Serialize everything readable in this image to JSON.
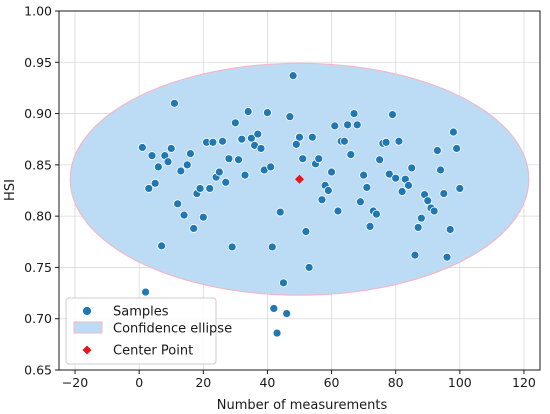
{
  "chart_data": {
    "type": "scatter",
    "xlabel": "Number of measurements",
    "ylabel": "HSI",
    "xlim": [
      -25,
      125
    ],
    "ylim": [
      0.65,
      1.0
    ],
    "x_ticks": [
      -20,
      0,
      20,
      40,
      60,
      80,
      100,
      120
    ],
    "y_ticks": [
      0.65,
      0.7,
      0.75,
      0.8,
      0.85,
      0.9,
      0.95,
      1.0
    ],
    "x_tick_labels": [
      "−20",
      "0",
      "20",
      "40",
      "60",
      "80",
      "100",
      "120"
    ],
    "y_tick_labels": [
      "0.65",
      "0.70",
      "0.75",
      "0.80",
      "0.85",
      "0.90",
      "0.95",
      "1.00"
    ],
    "grid": true,
    "legend_position": "lower-left",
    "legend": [
      "Samples",
      "Confidence ellipse",
      "Center Point"
    ],
    "colors": {
      "samples": "#1f77b4",
      "ellipse_fill": "#bcdcf5",
      "ellipse_edge": "#f2b8c6",
      "center": "#e8151b"
    },
    "ellipse": {
      "center_x": 50.0,
      "center_y": 0.836,
      "half_width_x": 71.5,
      "half_height_y": 0.113
    },
    "center_point": {
      "x": 50.0,
      "y": 0.836
    },
    "samples": [
      [
        1,
        0.867
      ],
      [
        2,
        0.726
      ],
      [
        3,
        0.827
      ],
      [
        4,
        0.859
      ],
      [
        5,
        0.832
      ],
      [
        6,
        0.848
      ],
      [
        7,
        0.771
      ],
      [
        8,
        0.859
      ],
      [
        9,
        0.853
      ],
      [
        10,
        0.866
      ],
      [
        11,
        0.91
      ],
      [
        12,
        0.812
      ],
      [
        13,
        0.844
      ],
      [
        14,
        0.801
      ],
      [
        15,
        0.85
      ],
      [
        16,
        0.861
      ],
      [
        17,
        0.788
      ],
      [
        18,
        0.822
      ],
      [
        19,
        0.827
      ],
      [
        20,
        0.799
      ],
      [
        21,
        0.872
      ],
      [
        22,
        0.827
      ],
      [
        23,
        0.872
      ],
      [
        24,
        0.838
      ],
      [
        25,
        0.843
      ],
      [
        26,
        0.873
      ],
      [
        27,
        0.833
      ],
      [
        28,
        0.856
      ],
      [
        29,
        0.77
      ],
      [
        30,
        0.891
      ],
      [
        31,
        0.855
      ],
      [
        32,
        0.875
      ],
      [
        33,
        0.84
      ],
      [
        34,
        0.902
      ],
      [
        35,
        0.876
      ],
      [
        36,
        0.869
      ],
      [
        37,
        0.88
      ],
      [
        38,
        0.866
      ],
      [
        39,
        0.845
      ],
      [
        40,
        0.901
      ],
      [
        41,
        0.848
      ],
      [
        41.5,
        0.77
      ],
      [
        42,
        0.71
      ],
      [
        43,
        0.686
      ],
      [
        44,
        0.804
      ],
      [
        45,
        0.735
      ],
      [
        46,
        0.705
      ],
      [
        47,
        0.897
      ],
      [
        48,
        0.937
      ],
      [
        49,
        0.87
      ],
      [
        50,
        0.877
      ],
      [
        51,
        0.856
      ],
      [
        52,
        0.785
      ],
      [
        53,
        0.75
      ],
      [
        54,
        0.877
      ],
      [
        55,
        0.851
      ],
      [
        56,
        0.856
      ],
      [
        57,
        0.816
      ],
      [
        58,
        0.83
      ],
      [
        59,
        0.825
      ],
      [
        60,
        0.843
      ],
      [
        61,
        0.888
      ],
      [
        62,
        0.805
      ],
      [
        63,
        0.873
      ],
      [
        64,
        0.873
      ],
      [
        65,
        0.889
      ],
      [
        66,
        0.86
      ],
      [
        67,
        0.9
      ],
      [
        68,
        0.889
      ],
      [
        69,
        0.814
      ],
      [
        70,
        0.84
      ],
      [
        71,
        0.828
      ],
      [
        72,
        0.79
      ],
      [
        73,
        0.805
      ],
      [
        74,
        0.802
      ],
      [
        75,
        0.855
      ],
      [
        76,
        0.871
      ],
      [
        77,
        0.872
      ],
      [
        78,
        0.841
      ],
      [
        79,
        0.899
      ],
      [
        80,
        0.837
      ],
      [
        81,
        0.873
      ],
      [
        82,
        0.824
      ],
      [
        83,
        0.836
      ],
      [
        84,
        0.83
      ],
      [
        85,
        0.847
      ],
      [
        86,
        0.762
      ],
      [
        87,
        0.789
      ],
      [
        88,
        0.798
      ],
      [
        89,
        0.821
      ],
      [
        90,
        0.815
      ],
      [
        91,
        0.808
      ],
      [
        92,
        0.805
      ],
      [
        93,
        0.864
      ],
      [
        94,
        0.845
      ],
      [
        95,
        0.822
      ],
      [
        96,
        0.76
      ],
      [
        97,
        0.787
      ],
      [
        98,
        0.882
      ],
      [
        99,
        0.866
      ],
      [
        100,
        0.827
      ]
    ]
  }
}
